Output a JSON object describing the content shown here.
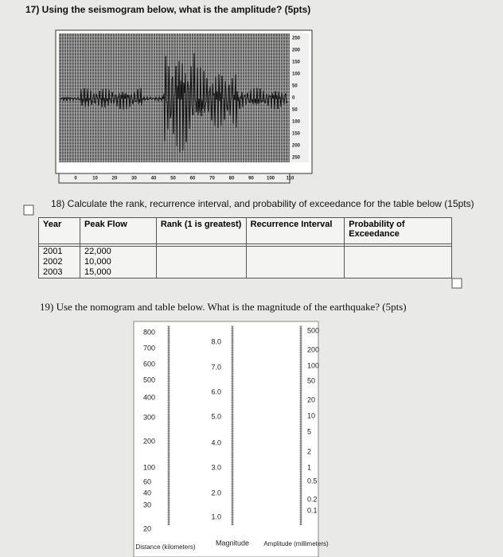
{
  "q17": {
    "text": "17) Using the seismogram below, what is the amplitude? (5pts)",
    "y_labels": [
      "250",
      "200",
      "150",
      "100",
      "50",
      "0",
      "50",
      "100",
      "150",
      "200",
      "250"
    ],
    "x_labels": [
      "0",
      "10",
      "20",
      "30",
      "40",
      "50",
      "60",
      "70",
      "80",
      "90",
      "100",
      "110"
    ]
  },
  "q18": {
    "text": "18) Calculate the rank, recurrence interval, and probability of exceedance for the table below (15pts)",
    "table": {
      "header": [
        "Year",
        "Peak Flow",
        "Rank (1 is greatest)",
        "Recurrence Interval",
        "Probability of Exceedance"
      ],
      "rows": [
        [
          "2001",
          "22,000"
        ],
        [
          "2002",
          "10,000"
        ],
        [
          "2003",
          "15,000"
        ]
      ]
    }
  },
  "q19": {
    "text": "19) Use the nomogram and table below. What is the magnitude of the earthquake? (5pts)",
    "distance": {
      "labels": [
        "800",
        "700",
        "600",
        "500",
        "400",
        "300",
        "200",
        "100",
        "60",
        "40",
        "30",
        "20"
      ],
      "title": "Distance (kilometers)"
    },
    "magnitude": {
      "labels": [
        "8.0",
        "7.0",
        "6.0",
        "5.0",
        "4.0",
        "3.0",
        "2.0",
        "1.0"
      ],
      "title": "Magnitude"
    },
    "amplitude": {
      "labels": [
        "500",
        "200",
        "100",
        "50",
        "20",
        "10",
        "5",
        "2",
        "1",
        "0.5",
        "0.2",
        "0.1"
      ],
      "title": "Amplitude (millimeters)"
    }
  }
}
